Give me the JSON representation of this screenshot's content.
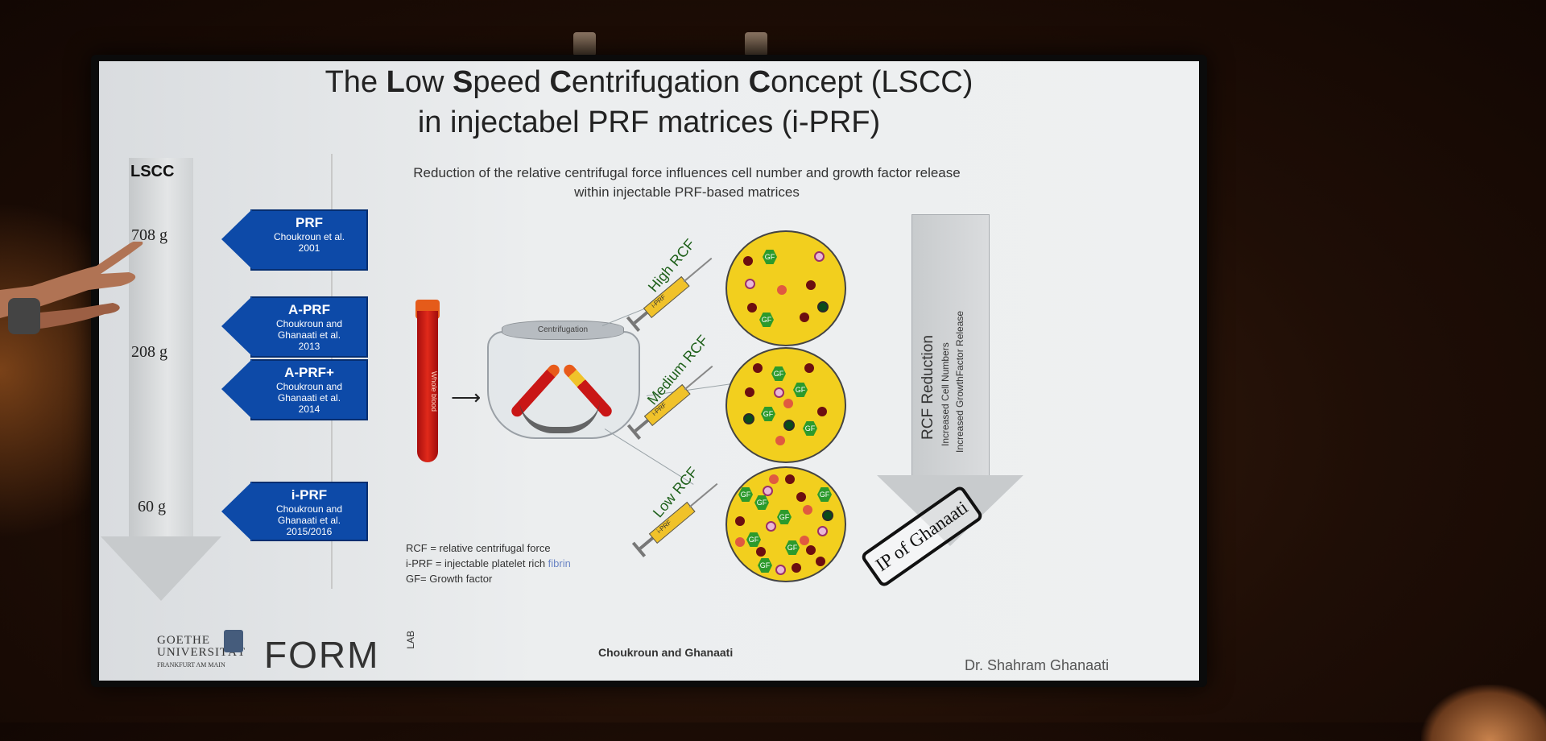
{
  "slide": {
    "title_line1_parts": [
      "The ",
      "L",
      "ow ",
      "S",
      "peed ",
      "C",
      "entrifugation ",
      "C",
      "oncept (LSCC)"
    ],
    "title_line2": "in injectabel PRF matrices (i-PRF)",
    "subtitle_line1": "Reduction of the relative centrifugal force influences cell number and growth factor release",
    "subtitle_line2": "within injectable PRF-based matrices"
  },
  "lscc_arrow": {
    "label": "LSCC",
    "values": [
      "708 g",
      "208 g",
      "60 g"
    ]
  },
  "tags": [
    {
      "title": "PRF",
      "line1": "Choukroun et al.",
      "line2": "2001"
    },
    {
      "title": "A-PRF",
      "line1": "Choukroun and",
      "line2": "Ghanaati et al.",
      "line3": "2013"
    },
    {
      "title": "A-PRF+",
      "line1": "Choukroun and",
      "line2": "Ghanaati et al.",
      "line3": "2014"
    },
    {
      "title": "i-PRF",
      "line1": "Choukroun and",
      "line2": "Ghanaati et al.",
      "line3": "2015/2016"
    }
  ],
  "diagram": {
    "tube_label": "Whole blood",
    "centrifuge_label": "Centrifugation",
    "syringe_labels": [
      "High RCF",
      "Medium RCF",
      "Low RCF"
    ],
    "syringe_tube_text": "i-PRF",
    "gf_label": "GF",
    "big_arrow": {
      "title": "RCF Reduction",
      "line1": "Increased Cell Numbers",
      "line2": "Increased GrowthFactor Release"
    },
    "stamp": "IP of Ghanaati"
  },
  "legend": {
    "line1": "RCF = relative centrifugal force",
    "line2_a": "i-PRF = injectable platelet rich ",
    "line2_b": "fibrin",
    "line3": "GF= Growth factor"
  },
  "footer": {
    "logo_goethe_1": "GOETHE",
    "logo_goethe_2": "UNIVERSITÄT",
    "logo_goethe_3": "FRANKFURT AM MAIN",
    "logo_form": "FORM",
    "logo_lab": "LAB",
    "center": "Choukroun and Ghanaati",
    "right": "Dr. Shahram Ghanaati"
  }
}
